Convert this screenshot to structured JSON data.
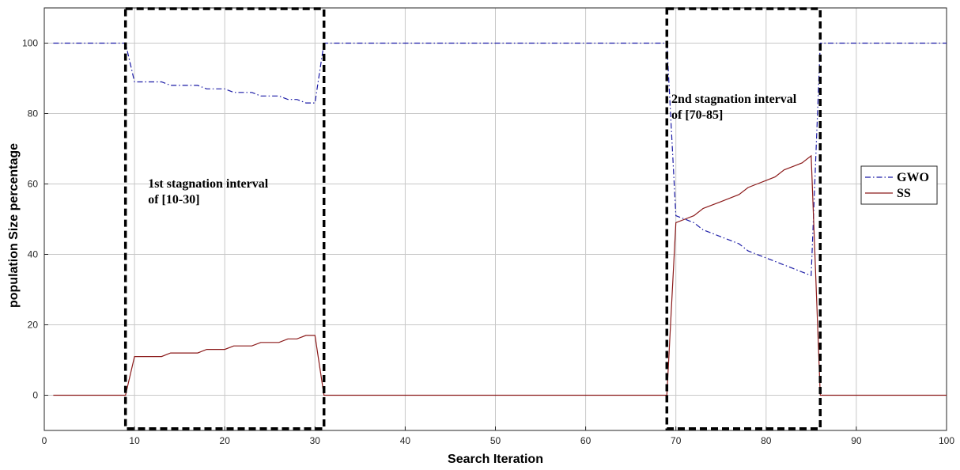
{
  "chart_data": {
    "type": "line",
    "xlabel": "Search Iteration",
    "ylabel": "population Size percentage",
    "xlim": [
      0,
      100
    ],
    "ylim": [
      -10,
      110
    ],
    "x_ticks": [
      0,
      10,
      20,
      30,
      40,
      50,
      60,
      70,
      80,
      90,
      100
    ],
    "y_ticks": [
      0,
      20,
      40,
      60,
      80,
      100
    ],
    "grid": true,
    "legend_position": "right",
    "series": [
      {
        "name": "GWO",
        "color": "#1a1aa6",
        "dash": "dash-dot",
        "points": [
          [
            1,
            100
          ],
          [
            9,
            100
          ],
          [
            10,
            89
          ],
          [
            13,
            89
          ],
          [
            14,
            88
          ],
          [
            17,
            88
          ],
          [
            18,
            87
          ],
          [
            20,
            87
          ],
          [
            21,
            86
          ],
          [
            23,
            86
          ],
          [
            24,
            85
          ],
          [
            26,
            85
          ],
          [
            27,
            84
          ],
          [
            28,
            84
          ],
          [
            29,
            83
          ],
          [
            30,
            83
          ],
          [
            31,
            100
          ],
          [
            69,
            100
          ],
          [
            70,
            51
          ],
          [
            71,
            50
          ],
          [
            72,
            49
          ],
          [
            73,
            47
          ],
          [
            74,
            46
          ],
          [
            75,
            45
          ],
          [
            76,
            44
          ],
          [
            77,
            43
          ],
          [
            78,
            41
          ],
          [
            79,
            40
          ],
          [
            80,
            39
          ],
          [
            81,
            38
          ],
          [
            82,
            37
          ],
          [
            83,
            36
          ],
          [
            84,
            35
          ],
          [
            85,
            34
          ],
          [
            86,
            100
          ],
          [
            100,
            100
          ]
        ]
      },
      {
        "name": "SS",
        "color": "#8b1a1a",
        "dash": "solid",
        "points": [
          [
            1,
            0
          ],
          [
            9,
            0
          ],
          [
            10,
            11
          ],
          [
            13,
            11
          ],
          [
            14,
            12
          ],
          [
            17,
            12
          ],
          [
            18,
            13
          ],
          [
            20,
            13
          ],
          [
            21,
            14
          ],
          [
            23,
            14
          ],
          [
            24,
            15
          ],
          [
            26,
            15
          ],
          [
            27,
            16
          ],
          [
            28,
            16
          ],
          [
            29,
            17
          ],
          [
            30,
            17
          ],
          [
            31,
            0
          ],
          [
            69,
            0
          ],
          [
            70,
            49
          ],
          [
            71,
            50
          ],
          [
            72,
            51
          ],
          [
            73,
            53
          ],
          [
            74,
            54
          ],
          [
            75,
            55
          ],
          [
            76,
            56
          ],
          [
            77,
            57
          ],
          [
            78,
            59
          ],
          [
            79,
            60
          ],
          [
            80,
            61
          ],
          [
            81,
            62
          ],
          [
            82,
            64
          ],
          [
            83,
            65
          ],
          [
            84,
            66
          ],
          [
            85,
            68
          ],
          [
            86,
            0
          ],
          [
            100,
            0
          ]
        ]
      }
    ],
    "boxes": [
      {
        "x": [
          9,
          31
        ],
        "y": [
          -9.5,
          110
        ]
      },
      {
        "x": [
          69,
          86
        ],
        "y": [
          -9.5,
          110
        ]
      }
    ],
    "annotations": [
      {
        "lines": [
          "1st stagnation interval",
          "of [10-30]"
        ],
        "x": 11.5,
        "y": 59
      },
      {
        "lines": [
          "2nd stagnation interval",
          "of [70-85]"
        ],
        "x": 69.5,
        "y": 83
      }
    ]
  }
}
